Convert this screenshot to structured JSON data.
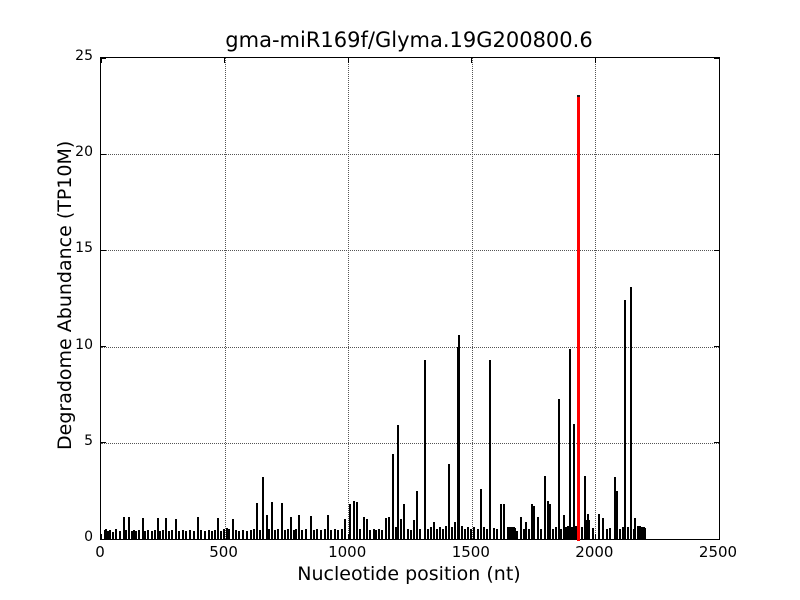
{
  "chart_data": {
    "type": "bar",
    "title": "gma-miR169f/Glyma.19G200800.6",
    "xlabel": "Nucleotide position (nt)",
    "ylabel": "Degradome Abundance (TP10M)",
    "xlim": [
      0,
      2500
    ],
    "ylim": [
      0,
      25
    ],
    "xticks": [
      0,
      500,
      1000,
      1500,
      2000,
      2500
    ],
    "yticks": [
      0,
      5,
      10,
      15,
      20,
      25
    ],
    "grid": "dotted major gridlines, ticks inward on all sides",
    "legend": "none",
    "bar_color": "#000000",
    "highlight_color": "#ff0000",
    "highlight_point": {
      "x": 1933,
      "y": 23.1,
      "meaning": "miRNA cleavage site (red bar)"
    },
    "points": [
      [
        17,
        0.45
      ],
      [
        22,
        0.5
      ],
      [
        30,
        0.4
      ],
      [
        38,
        0.45
      ],
      [
        48,
        0.35
      ],
      [
        60,
        0.5
      ],
      [
        78,
        0.4
      ],
      [
        94,
        1.15
      ],
      [
        100,
        0.45
      ],
      [
        114,
        1.15
      ],
      [
        125,
        0.4
      ],
      [
        133,
        0.45
      ],
      [
        142,
        0.4
      ],
      [
        154,
        0.45
      ],
      [
        169,
        1.1
      ],
      [
        178,
        0.4
      ],
      [
        190,
        0.45
      ],
      [
        205,
        0.4
      ],
      [
        218,
        0.45
      ],
      [
        229,
        1.1
      ],
      [
        240,
        0.4
      ],
      [
        252,
        0.45
      ],
      [
        263,
        1.1
      ],
      [
        275,
        0.4
      ],
      [
        287,
        0.45
      ],
      [
        303,
        1.05
      ],
      [
        315,
        0.4
      ],
      [
        330,
        0.45
      ],
      [
        345,
        0.4
      ],
      [
        360,
        0.45
      ],
      [
        375,
        0.4
      ],
      [
        391,
        1.15
      ],
      [
        405,
        0.45
      ],
      [
        420,
        0.4
      ],
      [
        435,
        0.45
      ],
      [
        450,
        0.4
      ],
      [
        460,
        0.45
      ],
      [
        472,
        1.1
      ],
      [
        485,
        0.4
      ],
      [
        499,
        0.5
      ],
      [
        508,
        0.55
      ],
      [
        519,
        0.5
      ],
      [
        533,
        1.05
      ],
      [
        545,
        0.45
      ],
      [
        560,
        0.4
      ],
      [
        575,
        0.45
      ],
      [
        590,
        0.4
      ],
      [
        605,
        0.45
      ],
      [
        617,
        0.5
      ],
      [
        630,
        1.85
      ],
      [
        642,
        0.45
      ],
      [
        655,
        3.2
      ],
      [
        670,
        1.25
      ],
      [
        680,
        0.5
      ],
      [
        692,
        1.9
      ],
      [
        705,
        0.45
      ],
      [
        718,
        0.5
      ],
      [
        731,
        1.85
      ],
      [
        745,
        0.45
      ],
      [
        755,
        0.5
      ],
      [
        768,
        1.15
      ],
      [
        780,
        0.45
      ],
      [
        790,
        0.5
      ],
      [
        802,
        1.25
      ],
      [
        815,
        0.45
      ],
      [
        828,
        0.5
      ],
      [
        849,
        1.2
      ],
      [
        862,
        0.45
      ],
      [
        875,
        0.5
      ],
      [
        890,
        0.45
      ],
      [
        905,
        0.5
      ],
      [
        917,
        1.25
      ],
      [
        930,
        0.45
      ],
      [
        945,
        0.5
      ],
      [
        960,
        0.45
      ],
      [
        975,
        0.5
      ],
      [
        988,
        1.05
      ],
      [
        1006,
        1.8
      ],
      [
        1022,
        2.0
      ],
      [
        1035,
        1.9
      ],
      [
        1048,
        0.5
      ],
      [
        1063,
        1.15
      ],
      [
        1076,
        1.05
      ],
      [
        1090,
        0.45
      ],
      [
        1103,
        0.5
      ],
      [
        1112,
        0.45
      ],
      [
        1125,
        0.5
      ],
      [
        1138,
        0.45
      ],
      [
        1153,
        1.1
      ],
      [
        1165,
        1.15
      ],
      [
        1180,
        4.4
      ],
      [
        1192,
        0.6
      ],
      [
        1203,
        5.9
      ],
      [
        1214,
        1.05
      ],
      [
        1227,
        1.8
      ],
      [
        1240,
        0.5
      ],
      [
        1254,
        0.45
      ],
      [
        1267,
        1.0
      ],
      [
        1277,
        2.5
      ],
      [
        1290,
        0.5
      ],
      [
        1310,
        9.3
      ],
      [
        1322,
        0.5
      ],
      [
        1335,
        0.6
      ],
      [
        1348,
        0.9
      ],
      [
        1360,
        0.5
      ],
      [
        1372,
        0.6
      ],
      [
        1385,
        0.5
      ],
      [
        1397,
        0.7
      ],
      [
        1409,
        3.9
      ],
      [
        1420,
        0.6
      ],
      [
        1432,
        0.9
      ],
      [
        1443,
        10.0
      ],
      [
        1449,
        10.6
      ],
      [
        1460,
        0.7
      ],
      [
        1472,
        0.5
      ],
      [
        1484,
        0.6
      ],
      [
        1497,
        0.5
      ],
      [
        1510,
        0.6
      ],
      [
        1524,
        0.5
      ],
      [
        1538,
        2.6
      ],
      [
        1550,
        0.6
      ],
      [
        1562,
        0.5
      ],
      [
        1575,
        9.3
      ],
      [
        1588,
        0.55
      ],
      [
        1602,
        0.5
      ],
      [
        1618,
        1.8
      ],
      [
        1631,
        1.8
      ],
      [
        1645,
        0.6
      ],
      [
        1652,
        0.6
      ],
      [
        1658,
        0.6
      ],
      [
        1664,
        0.6
      ],
      [
        1670,
        0.6
      ],
      [
        1676,
        0.55
      ],
      [
        1683,
        0.4
      ],
      [
        1699,
        1.15
      ],
      [
        1710,
        0.5
      ],
      [
        1719,
        0.9
      ],
      [
        1730,
        0.5
      ],
      [
        1742,
        1.8
      ],
      [
        1753,
        1.7
      ],
      [
        1766,
        1.15
      ],
      [
        1780,
        0.5
      ],
      [
        1797,
        3.3
      ],
      [
        1809,
        2.0
      ],
      [
        1817,
        1.8
      ],
      [
        1830,
        0.5
      ],
      [
        1840,
        0.6
      ],
      [
        1851,
        7.3
      ],
      [
        1860,
        0.5
      ],
      [
        1871,
        1.25
      ],
      [
        1882,
        0.6
      ],
      [
        1890,
        0.7
      ],
      [
        1898,
        9.9
      ],
      [
        1906,
        0.6
      ],
      [
        1914,
        6.0
      ],
      [
        1922,
        0.7
      ],
      [
        1945,
        0.6
      ],
      [
        1958,
        3.3
      ],
      [
        1964,
        1.0
      ],
      [
        1970,
        1.3
      ],
      [
        1975,
        1.0
      ],
      [
        1989,
        0.55
      ],
      [
        2013,
        1.3
      ],
      [
        2029,
        1.1
      ],
      [
        2045,
        0.5
      ],
      [
        2060,
        0.55
      ],
      [
        2080,
        3.2
      ],
      [
        2088,
        2.5
      ],
      [
        2100,
        0.5
      ],
      [
        2110,
        0.6
      ],
      [
        2119,
        12.4
      ],
      [
        2131,
        0.6
      ],
      [
        2144,
        13.1
      ],
      [
        2155,
        0.5
      ],
      [
        2161,
        1.1
      ],
      [
        2172,
        0.65
      ],
      [
        2180,
        0.65
      ],
      [
        2188,
        0.6
      ],
      [
        2196,
        0.6
      ],
      [
        2202,
        0.55
      ]
    ]
  }
}
